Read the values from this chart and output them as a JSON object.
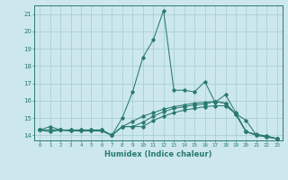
{
  "title": "",
  "xlabel": "Humidex (Indice chaleur)",
  "ylabel": "",
  "background_color": "#cce8ec",
  "grid_color": "#aad0d6",
  "line_color": "#2a7a6e",
  "xlim": [
    -0.5,
    23.5
  ],
  "ylim": [
    13.7,
    21.5
  ],
  "yticks": [
    14,
    15,
    16,
    17,
    18,
    19,
    20,
    21
  ],
  "xticks": [
    0,
    1,
    2,
    3,
    4,
    5,
    6,
    7,
    8,
    9,
    10,
    11,
    12,
    13,
    14,
    15,
    16,
    17,
    18,
    19,
    20,
    21,
    22,
    23
  ],
  "series": [
    {
      "x": [
        0,
        1,
        2,
        3,
        4,
        5,
        6,
        7,
        8,
        9,
        10,
        11,
        12,
        13,
        14,
        15,
        16,
        17,
        18,
        19,
        20,
        21,
        22,
        23
      ],
      "y": [
        14.3,
        14.5,
        14.3,
        14.25,
        14.25,
        14.25,
        14.25,
        14.0,
        14.5,
        14.5,
        14.5,
        14.85,
        15.1,
        15.3,
        15.45,
        15.55,
        15.65,
        15.7,
        15.7,
        15.25,
        14.85,
        14.0,
        13.95,
        13.8
      ]
    },
    {
      "x": [
        0,
        1,
        2,
        3,
        4,
        5,
        6,
        7,
        8,
        9,
        10,
        11,
        12,
        13,
        14,
        15,
        16,
        17,
        18,
        19,
        20,
        21,
        22,
        23
      ],
      "y": [
        14.3,
        14.2,
        14.3,
        14.25,
        14.25,
        14.25,
        14.25,
        14.0,
        14.5,
        14.8,
        15.1,
        15.3,
        15.5,
        15.65,
        15.75,
        15.85,
        15.9,
        15.95,
        15.85,
        15.2,
        14.2,
        14.05,
        13.95,
        13.8
      ]
    },
    {
      "x": [
        0,
        1,
        2,
        3,
        4,
        5,
        6,
        7,
        8,
        9,
        10,
        11,
        12,
        13,
        14,
        15,
        16,
        17,
        18,
        19,
        20,
        21,
        22,
        23
      ],
      "y": [
        14.3,
        14.3,
        14.3,
        14.3,
        14.3,
        14.3,
        14.3,
        14.0,
        15.0,
        16.5,
        18.5,
        19.5,
        21.2,
        16.6,
        16.6,
        16.5,
        17.1,
        15.9,
        16.35,
        15.3,
        14.2,
        14.0,
        13.9,
        13.8
      ]
    },
    {
      "x": [
        0,
        1,
        2,
        3,
        4,
        5,
        6,
        7,
        8,
        9,
        10,
        11,
        12,
        13,
        14,
        15,
        16,
        17,
        18,
        19,
        20,
        21,
        22,
        23
      ],
      "y": [
        14.3,
        14.3,
        14.3,
        14.3,
        14.3,
        14.3,
        14.3,
        14.0,
        14.5,
        14.5,
        14.75,
        15.1,
        15.35,
        15.55,
        15.65,
        15.75,
        15.8,
        15.95,
        15.85,
        15.2,
        14.2,
        14.0,
        13.9,
        13.8
      ]
    }
  ]
}
